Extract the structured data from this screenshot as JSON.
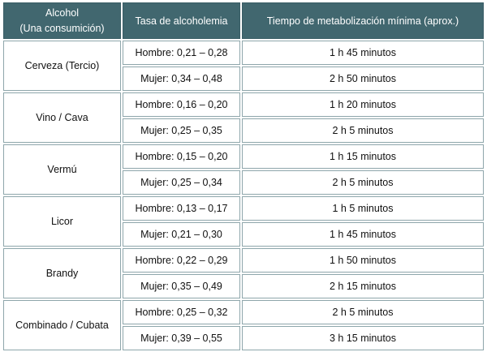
{
  "table": {
    "header": {
      "col1_line1": "Alcohol",
      "col1_line2": "(Una consumición)",
      "col2": "Tasa de alcoholemia",
      "col3": "Tiempo de metabolización mínima (aprox.)"
    },
    "rows": [
      {
        "drink": "Cerveza (Tercio)",
        "men_rate": "Hombre: 0,21 – 0,28",
        "men_time": "1 h 45 minutos",
        "women_rate": "Mujer: 0,34 – 0,48",
        "women_time": "2 h 50 minutos"
      },
      {
        "drink": "Vino / Cava",
        "men_rate": "Hombre: 0,16 – 0,20",
        "men_time": "1 h 20 minutos",
        "women_rate": "Mujer: 0,25 – 0,35",
        "women_time": "2 h 5 minutos"
      },
      {
        "drink": "Vermú",
        "men_rate": "Hombre: 0,15 – 0,20",
        "men_time": "1 h 15 minutos",
        "women_rate": "Mujer: 0,25 – 0,34",
        "women_time": "2 h 5 minutos"
      },
      {
        "drink": "Licor",
        "men_rate": "Hombre: 0,13 – 0,17",
        "men_time": "1 h 5 minutos",
        "women_rate": "Mujer: 0,21 – 0,30",
        "women_time": "1 h 45 minutos"
      },
      {
        "drink": "Brandy",
        "men_rate": "Hombre: 0,22 – 0,29",
        "men_time": "1 h 50 minutos",
        "women_rate": "Mujer: 0,35 – 0,49",
        "women_time": "2 h 15 minutos"
      },
      {
        "drink": "Combinado / Cubata",
        "men_rate": "Hombre: 0,25 – 0,32",
        "men_time": "2 h 5 minutos",
        "women_rate": "Mujer: 0,39 – 0,55",
        "women_time": "3 h 15 minutos"
      }
    ]
  },
  "colors": {
    "header_bg": "#41676f",
    "header_text": "#ffffff",
    "cell_border": "#8ea6ab"
  }
}
